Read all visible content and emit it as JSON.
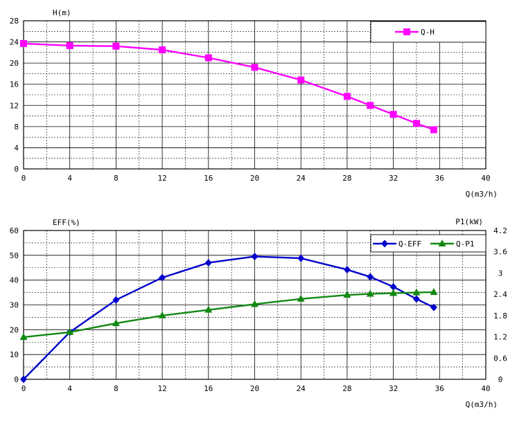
{
  "chart_data": [
    {
      "type": "line",
      "ylabel": "H(m)",
      "xlabel": "Q(m3/h)",
      "xlim": [
        0,
        40
      ],
      "ylim": [
        0,
        28
      ],
      "x_ticks": [
        0,
        4,
        8,
        12,
        16,
        20,
        24,
        28,
        32,
        36,
        40
      ],
      "y_ticks": [
        0,
        4,
        8,
        12,
        16,
        20,
        24,
        28
      ],
      "grid": true,
      "legend_placement": "top-right",
      "series": [
        {
          "name": "Q-H",
          "color": "#ff00ff",
          "marker": "square",
          "x": [
            0,
            4,
            8,
            12,
            16,
            20,
            24,
            28,
            30,
            32,
            34,
            35.5
          ],
          "y": [
            23.7,
            23.3,
            23.2,
            22.5,
            21.0,
            19.2,
            16.8,
            13.7,
            12.0,
            10.3,
            8.6,
            7.4
          ]
        }
      ]
    },
    {
      "type": "line",
      "ylabel": "EFF(%)",
      "y2label": "P1(kW)",
      "xlabel": "Q(m3/h)",
      "xlim": [
        0,
        40
      ],
      "ylim": [
        0,
        60
      ],
      "y2lim": [
        0,
        4.2
      ],
      "x_ticks": [
        0,
        4,
        8,
        12,
        16,
        20,
        24,
        28,
        32,
        36,
        40
      ],
      "y_ticks": [
        0,
        10,
        20,
        30,
        40,
        50,
        60
      ],
      "y2_ticks": [
        "0",
        "0.6",
        "1.2",
        "1.8",
        "2.4",
        "3",
        "3.6",
        "4.2"
      ],
      "grid": true,
      "legend_placement": "top-right",
      "series": [
        {
          "name": "Q-EFF",
          "axis": "left",
          "color": "#0000cc",
          "marker": "diamond",
          "x": [
            0,
            4,
            8,
            12,
            16,
            20,
            24,
            28,
            30,
            32,
            34,
            35.5
          ],
          "y": [
            0,
            19,
            32,
            41,
            47,
            49.5,
            48.8,
            44.2,
            41.3,
            37.3,
            32.4,
            29
          ]
        },
        {
          "name": "Q-P1",
          "axis": "right",
          "color": "#118811",
          "marker": "triangle",
          "x": [
            0,
            4,
            8,
            12,
            16,
            20,
            24,
            28,
            30,
            32,
            34,
            35.5
          ],
          "y": [
            1.19,
            1.33,
            1.58,
            1.8,
            1.96,
            2.12,
            2.27,
            2.38,
            2.41,
            2.43,
            2.45,
            2.46
          ]
        }
      ]
    }
  ]
}
